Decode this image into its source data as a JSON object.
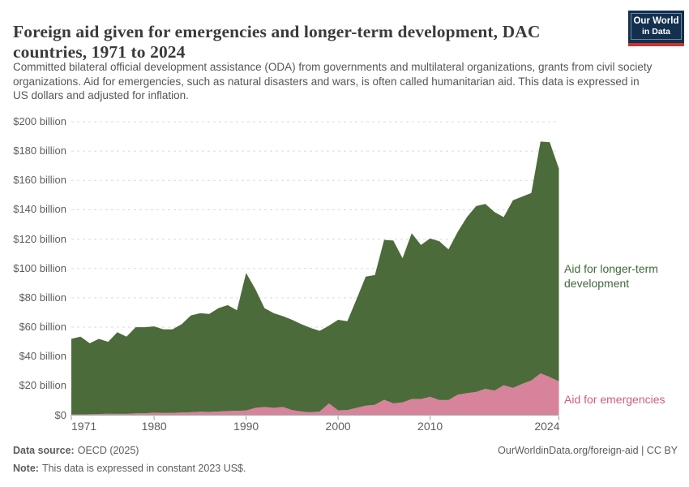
{
  "header": {
    "title": "Foreign aid given for emergencies and longer-term development, DAC countries, 1971 to 2024",
    "subtitle": "Committed bilateral official development assistance (ODA) from governments and multilateral organizations, grants from civil society organizations. Aid for emergencies, such as natural disasters and wars, is often called humanitarian aid. This data is expressed in US dollars and adjusted for inflation.",
    "logo": {
      "line1": "Our World",
      "line2": "in Data",
      "bg_color": "#13304f",
      "stripe_color": "#cc342c"
    }
  },
  "chart_data": {
    "type": "area",
    "stacked": true,
    "title": "Foreign aid given for emergencies and longer-term development, DAC countries, 1971 to 2024",
    "unit": "constant 2023 US$, billions",
    "grid": "dashed-horizontal",
    "legend_position": "right-of-plot",
    "ylim": [
      0,
      200
    ],
    "x": [
      1971,
      1972,
      1973,
      1974,
      1975,
      1976,
      1977,
      1978,
      1979,
      1980,
      1981,
      1982,
      1983,
      1984,
      1985,
      1986,
      1987,
      1988,
      1989,
      1990,
      1991,
      1992,
      1993,
      1994,
      1995,
      1996,
      1997,
      1998,
      1999,
      2000,
      2001,
      2002,
      2003,
      2004,
      2005,
      2006,
      2007,
      2008,
      2009,
      2010,
      2011,
      2012,
      2013,
      2014,
      2015,
      2016,
      2017,
      2018,
      2019,
      2020,
      2021,
      2022,
      2023,
      2024
    ],
    "series": [
      {
        "name": "Aid for emergencies",
        "fill_color": "#d6839b",
        "label_color": "#d25c79",
        "values": [
          0.5,
          0.5,
          0.6,
          0.8,
          1.0,
          0.9,
          0.9,
          1.2,
          1.3,
          1.7,
          1.5,
          1.6,
          1.8,
          2.0,
          2.3,
          2.2,
          2.5,
          2.8,
          3.0,
          3.2,
          5.0,
          5.6,
          5.0,
          5.6,
          3.5,
          2.5,
          2.0,
          2.5,
          8.0,
          3.3,
          3.5,
          5.0,
          6.5,
          7.0,
          10.5,
          8.0,
          8.7,
          11.0,
          11.0,
          12.5,
          10.3,
          10.3,
          14.0,
          15.0,
          15.8,
          18.0,
          16.7,
          20.4,
          18.6,
          21.3,
          23.6,
          28.5,
          26.0,
          23.0
        ]
      },
      {
        "name": "Aid for longer-term development",
        "fill_color": "#4b6b3a",
        "label_color": "#40693a",
        "values": [
          51.5,
          53.0,
          48.4,
          51.2,
          49.0,
          55.6,
          52.6,
          58.8,
          58.7,
          58.8,
          57.0,
          56.9,
          60.2,
          66.0,
          67.2,
          66.8,
          70.5,
          72.2,
          68.5,
          93.8,
          81.0,
          67.4,
          64.5,
          61.9,
          61.5,
          59.5,
          57.5,
          55.0,
          53.0,
          61.7,
          60.5,
          74.0,
          88.0,
          88.5,
          109.0,
          111.0,
          98.3,
          113.0,
          105.0,
          108.0,
          108.2,
          102.7,
          111.0,
          120.0,
          126.7,
          126.0,
          121.8,
          114.6,
          127.9,
          127.7,
          127.9,
          158.0,
          160.0,
          145.0
        ]
      }
    ],
    "y_ticks": [
      {
        "value": 0,
        "label": "$0"
      },
      {
        "value": 20,
        "label": "$20 billion"
      },
      {
        "value": 40,
        "label": "$40 billion"
      },
      {
        "value": 60,
        "label": "$60 billion"
      },
      {
        "value": 80,
        "label": "$80 billion"
      },
      {
        "value": 100,
        "label": "$100 billion"
      },
      {
        "value": 120,
        "label": "$120 billion"
      },
      {
        "value": 140,
        "label": "$140 billion"
      },
      {
        "value": 160,
        "label": "$160 billion"
      },
      {
        "value": 180,
        "label": "$180 billion"
      },
      {
        "value": 200,
        "label": "$200 billion"
      }
    ],
    "x_ticks": [
      {
        "value": 1971,
        "label": "1971",
        "align": "start"
      },
      {
        "value": 1980,
        "label": "1980",
        "align": "middle"
      },
      {
        "value": 1990,
        "label": "1990",
        "align": "middle"
      },
      {
        "value": 2000,
        "label": "2000",
        "align": "middle"
      },
      {
        "value": 2010,
        "label": "2010",
        "align": "middle"
      },
      {
        "value": 2024,
        "label": "2024",
        "align": "end"
      }
    ]
  },
  "footer": {
    "datasource_label": "Data source:",
    "datasource_value": "OECD (2025)",
    "attribution": "OurWorldinData.org/foreign-aid | CC BY",
    "note_label": "Note:",
    "note_value": "This data is expressed in constant 2023 US$."
  }
}
